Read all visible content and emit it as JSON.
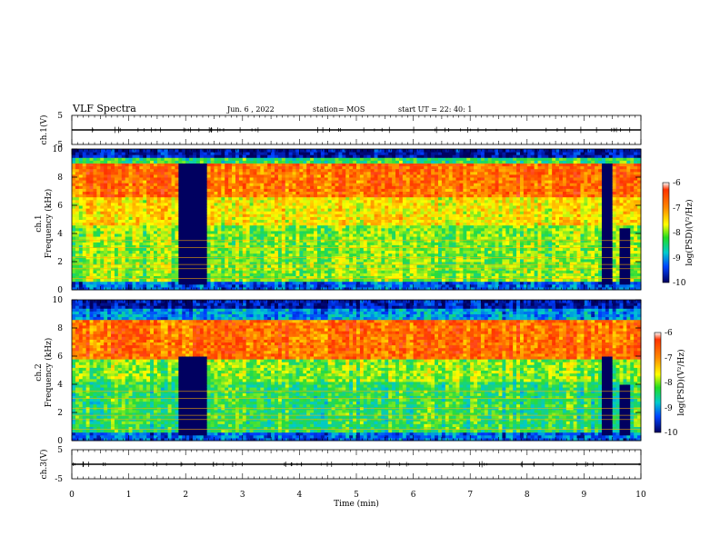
{
  "header": {
    "title": "VLF Spectra",
    "date": "Jun. 6 , 2022",
    "station": "station= MOS",
    "start": "start  UT =   22: 40: 1"
  },
  "colorbar": {
    "label": "log(PSD)(V²/Hz)",
    "ticks": [
      "-6",
      "-7",
      "-8",
      "-9",
      "-10"
    ],
    "colors": [
      "#ffffff",
      "#ff3300",
      "#ff8800",
      "#ffff00",
      "#22dd22",
      "#00cccc",
      "#0044ff",
      "#000060"
    ]
  },
  "chart_data": [
    {
      "type": "line",
      "panel": "ch.1(V)",
      "ylabel": "ch.1(V)",
      "ylim": [
        -5,
        5
      ],
      "yticks": [
        "5",
        "-5"
      ],
      "series": [
        {
          "x": [
            0,
            10
          ],
          "y": [
            0,
            0
          ]
        }
      ]
    },
    {
      "type": "heatmap",
      "panel": "ch.1 spectrogram",
      "ylabel_line1": "ch.1",
      "ylabel_line2": "Frequency (kHz)",
      "ylim": [
        0,
        10
      ],
      "yticks": [
        "0",
        "2",
        "4",
        "6",
        "8",
        "10"
      ],
      "zlim": [
        -10,
        -6
      ],
      "features": [
        {
          "time_range": [
            1.9,
            2.4
          ],
          "freq_range": [
            0.5,
            9.0
          ],
          "level": -10
        },
        {
          "time_range": [
            9.3,
            9.5
          ],
          "freq_range": [
            0.5,
            9.0
          ],
          "level": -10
        },
        {
          "time_range": [
            9.6,
            9.8
          ],
          "freq_range": [
            0.5,
            4.3
          ],
          "level": -10
        }
      ]
    },
    {
      "type": "heatmap",
      "panel": "ch.2 spectrogram",
      "ylabel_line1": "ch.2",
      "ylabel_line2": "Frequency (kHz)",
      "ylim": [
        0,
        10
      ],
      "yticks": [
        "0",
        "2",
        "4",
        "6",
        "8",
        "10"
      ],
      "zlim": [
        -10,
        -6
      ],
      "features": [
        {
          "time_range": [
            1.9,
            2.4
          ],
          "freq_range": [
            0.5,
            6.0
          ],
          "level": -10
        },
        {
          "time_range": [
            9.3,
            9.5
          ],
          "freq_range": [
            0.5,
            6.0
          ],
          "level": -10
        },
        {
          "time_range": [
            9.6,
            9.8
          ],
          "freq_range": [
            0.5,
            4.0
          ],
          "level": -10
        }
      ]
    },
    {
      "type": "line",
      "panel": "ch.3(V)",
      "ylabel": "ch.3(V)",
      "ylim": [
        -5,
        5
      ],
      "yticks": [
        "5",
        "-5"
      ],
      "xlabel": "Time (min)",
      "xlim": [
        0,
        10
      ],
      "xticks": [
        "0",
        "1",
        "2",
        "3",
        "4",
        "5",
        "6",
        "7",
        "8",
        "9",
        "10"
      ],
      "series": [
        {
          "x": [
            0,
            10
          ],
          "y": [
            0,
            0
          ]
        }
      ]
    }
  ]
}
